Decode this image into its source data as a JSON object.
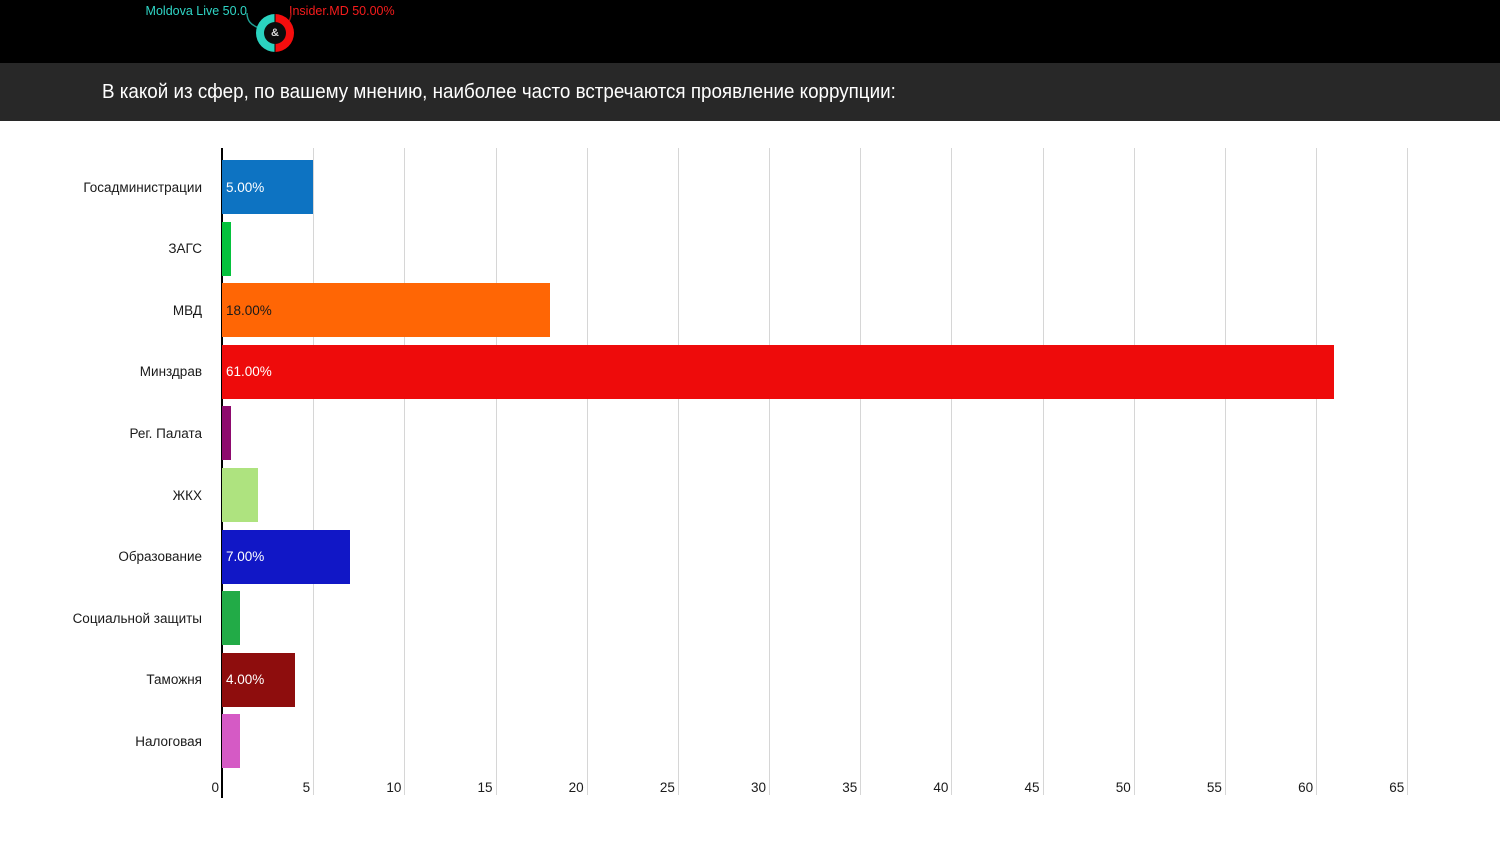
{
  "header": {
    "left_label": "Moldova Live 50.0",
    "right_label": "Insider.MD 50.00%",
    "left_color": "#2fd6c6",
    "right_color": "#f61c1c",
    "ampersand": "&",
    "donut": {
      "left_value": 50.0,
      "right_value": 50.0,
      "left_color": "#2bd3c0",
      "right_color": "#f60d0d",
      "separator_color": "#000000",
      "center_bg": "#0c0c0c",
      "center_symbol_color": "#d8d8d8"
    }
  },
  "chart_data": {
    "type": "bar",
    "orientation": "horizontal",
    "title": "В какой из сфер, по вашему мнению, наиболее часто встречаются проявление коррупции:",
    "categories": [
      "Госадминистрации",
      "ЗАГС",
      "МВД",
      "Минздрав",
      "Рег. Палата",
      "ЖКХ",
      "Образование",
      "Социальной защиты",
      "Таможня",
      "Налоговая"
    ],
    "values": [
      5,
      0.5,
      18,
      61,
      0.5,
      2,
      7,
      1,
      4,
      1
    ],
    "bar_labels": [
      "5.00%",
      "",
      "18.00%",
      "61.00%",
      "",
      "",
      "7.00%",
      "",
      "4.00%",
      ""
    ],
    "bar_colors": [
      "#0d73c2",
      "#04c23c",
      "#ff6605",
      "#ee0b0b",
      "#8e0a6e",
      "#aee37f",
      "#1117c6",
      "#22ab47",
      "#8e0d0d",
      "#d55ac5"
    ],
    "bar_label_colors": [
      "#ffffff",
      "",
      "#1a1a1a",
      "#ffffff",
      "",
      "",
      "#ffffff",
      "",
      "#ffffff",
      ""
    ],
    "xlabel": "",
    "ylabel": "",
    "xlim": [
      0,
      68
    ],
    "x_ticks": [
      0,
      5,
      10,
      15,
      20,
      25,
      30,
      35,
      40,
      45,
      50,
      55,
      60,
      65
    ],
    "grid": "vertical-gridlines-at-ticks",
    "legend": "none"
  },
  "colors": {
    "header_bg": "#000000",
    "title_bg": "#282828",
    "title_text": "#ffffff",
    "gridline": "#d6d6d6",
    "axis": "#000000",
    "tick_text": "#1a1a1a",
    "category_text": "#1a1a1a"
  }
}
